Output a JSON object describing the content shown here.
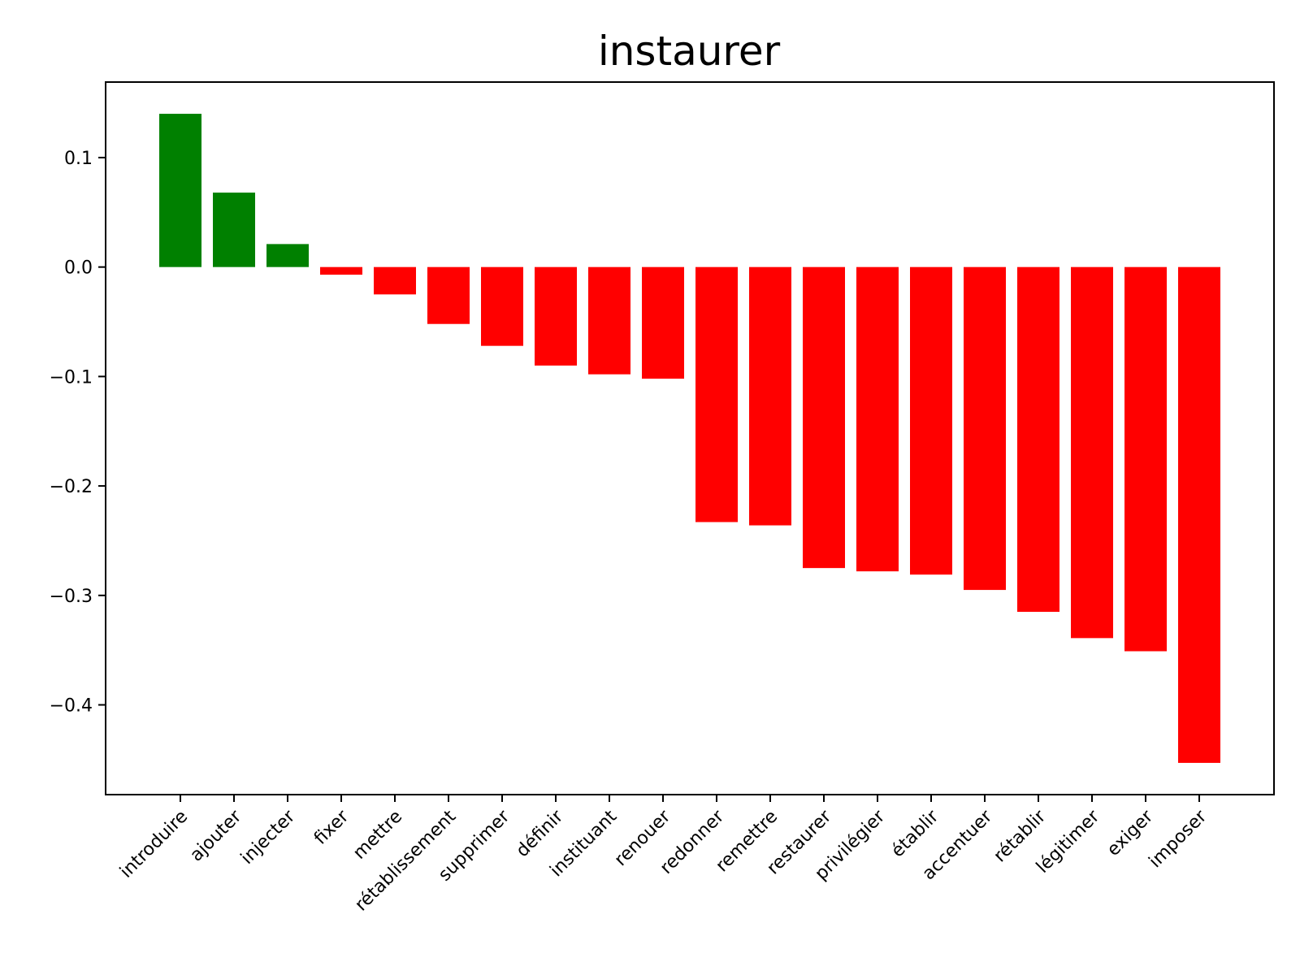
{
  "chart_data": {
    "type": "bar",
    "title": "instaurer",
    "xlabel": "",
    "ylabel": "",
    "categories": [
      "introduire",
      "ajouter",
      "injecter",
      "fixer",
      "mettre",
      "rétablissement",
      "supprimer",
      "définir",
      "instituant",
      "renouer",
      "redonner",
      "remettre",
      "restaurer",
      "privilégier",
      "établir",
      "accentuer",
      "rétablir",
      "légitimer",
      "exiger",
      "imposer"
    ],
    "values": [
      0.14,
      0.068,
      0.021,
      -0.007,
      -0.025,
      -0.052,
      -0.072,
      -0.09,
      -0.098,
      -0.102,
      -0.233,
      -0.236,
      -0.275,
      -0.278,
      -0.281,
      -0.295,
      -0.315,
      -0.339,
      -0.351,
      -0.453
    ],
    "ylim": [
      -0.482,
      0.169
    ],
    "yticks": [
      0.1,
      0.0,
      -0.1,
      -0.2,
      -0.3,
      -0.4
    ],
    "ytick_labels": [
      "0.1",
      "0.0",
      "−0.1",
      "−0.2",
      "−0.3",
      "−0.4"
    ],
    "positive_color": "#008000",
    "negative_color": "#ff0000",
    "grid": false,
    "legend": "none"
  }
}
